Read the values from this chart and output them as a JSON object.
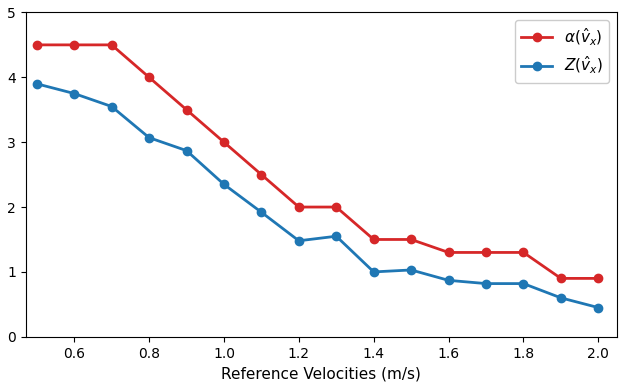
{
  "x": [
    0.5,
    0.6,
    0.7,
    0.8,
    0.9,
    1.0,
    1.1,
    1.2,
    1.3,
    1.4,
    1.5,
    1.6,
    1.7,
    1.8,
    1.9,
    2.0
  ],
  "alpha": [
    4.5,
    4.5,
    4.5,
    4.0,
    3.5,
    3.0,
    2.5,
    2.0,
    2.0,
    1.5,
    1.5,
    1.3,
    1.3,
    1.3,
    0.9,
    0.9
  ],
  "Z": [
    3.9,
    3.75,
    3.55,
    3.07,
    2.87,
    2.35,
    1.92,
    1.48,
    1.55,
    1.0,
    1.03,
    0.87,
    0.82,
    0.82,
    0.6,
    0.45
  ],
  "alpha_color": "#d62728",
  "Z_color": "#1f77b4",
  "xlabel": "Reference Velocities (m/s)",
  "ylim": [
    0,
    5
  ],
  "xlim": [
    0.47,
    2.05
  ],
  "xticks": [
    0.6,
    0.8,
    1.0,
    1.2,
    1.4,
    1.6,
    1.8,
    2.0
  ],
  "yticks": [
    0,
    1,
    2,
    3,
    4,
    5
  ],
  "legend_alpha": "$\\alpha(\\hat{v}_x)$",
  "legend_Z": "$Z(\\hat{v}_x)$",
  "marker": "o",
  "markersize": 6,
  "linewidth": 2
}
